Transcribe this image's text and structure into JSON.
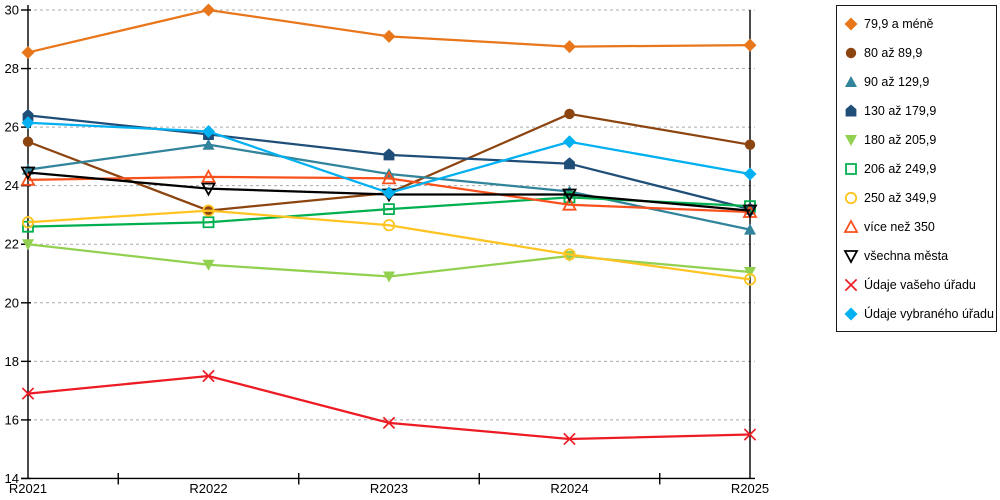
{
  "chart_data": {
    "type": "line",
    "title": "",
    "xlabel": "",
    "ylabel": "",
    "categories": [
      "R2021",
      "R2022",
      "R2023",
      "R2024",
      "R2025"
    ],
    "ylim": [
      14,
      30
    ],
    "ytick_step": 2,
    "yticks": [
      14,
      16,
      18,
      20,
      22,
      24,
      26,
      28,
      30
    ],
    "grid": "horizontal-dashed",
    "gridline_color": "#ABABAB",
    "axis_color": "#000000",
    "legend_position": "right",
    "series": [
      {
        "name": "79,9 a méně",
        "color": "#E8761B",
        "marker": "diamond",
        "fill": "filled",
        "values": [
          28.55,
          30.0,
          29.1,
          28.75,
          28.8
        ]
      },
      {
        "name": "80 až 89,9",
        "color": "#8C4510",
        "marker": "circle",
        "fill": "filled",
        "values": [
          25.5,
          23.15,
          23.75,
          26.45,
          25.4
        ]
      },
      {
        "name": "90 až 129,9",
        "color": "#31849B",
        "marker": "triangle-up",
        "fill": "filled",
        "values": [
          24.55,
          25.4,
          24.4,
          23.8,
          22.5
        ]
      },
      {
        "name": "130 až 179,9",
        "color": "#1F4E79",
        "marker": "pentagon",
        "fill": "filled",
        "values": [
          26.4,
          25.75,
          25.05,
          24.75,
          23.2
        ]
      },
      {
        "name": "180 až 205,9",
        "color": "#92D050",
        "marker": "triangle-down",
        "fill": "filled",
        "values": [
          22.0,
          21.3,
          20.9,
          21.6,
          21.05
        ]
      },
      {
        "name": "206 až 249,9",
        "color": "#00B050",
        "marker": "square",
        "fill": "open",
        "values": [
          22.6,
          22.75,
          23.2,
          23.6,
          23.3
        ]
      },
      {
        "name": "250 až 349,9",
        "color": "#FFC423",
        "marker": "circle",
        "fill": "open",
        "values": [
          22.75,
          23.15,
          22.65,
          21.65,
          20.8
        ]
      },
      {
        "name": "více než 350",
        "color": "#F9511D",
        "marker": "triangle-up",
        "fill": "open",
        "values": [
          24.2,
          24.3,
          24.25,
          23.35,
          23.1
        ]
      },
      {
        "name": "všechna města",
        "color": "#000000",
        "marker": "triangle-down",
        "fill": "open",
        "values": [
          24.45,
          23.9,
          23.7,
          23.7,
          23.15
        ]
      },
      {
        "name": "Údaje vašeho úřadu",
        "color": "#ED1C24",
        "marker": "x",
        "fill": "open",
        "values": [
          16.9,
          17.5,
          15.9,
          15.35,
          15.5
        ]
      },
      {
        "name": "Údaje vybraného úřadu",
        "color": "#00B0F0",
        "marker": "diamond",
        "fill": "filled",
        "values": [
          26.15,
          25.85,
          23.75,
          25.5,
          24.4
        ]
      }
    ]
  }
}
